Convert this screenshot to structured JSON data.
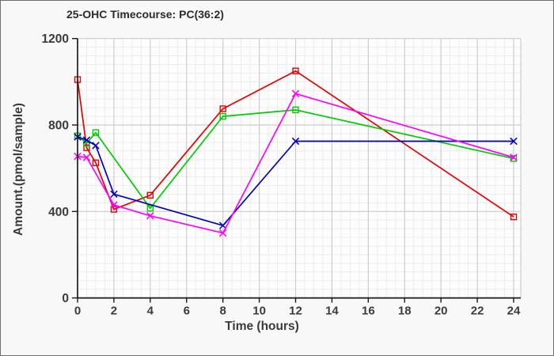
{
  "window": {
    "background": "#f8f8f8",
    "plot_background": "#fdfdfd",
    "frame_border": "#6e6e6e"
  },
  "chart_data": {
    "type": "line",
    "title": "25-OHC Timecourse: PC(36:2)",
    "xlabel": "Time (hours)",
    "ylabel": "Amount.(pmol/sample)",
    "xlim": [
      0,
      24
    ],
    "ylim": [
      0,
      1200
    ],
    "x_ticks": [
      0,
      2,
      4,
      6,
      8,
      10,
      12,
      14,
      16,
      18,
      20,
      22,
      24
    ],
    "y_ticks": [
      0,
      400,
      800,
      1200
    ],
    "grid": {
      "shown": true,
      "major_color": "#cccccc",
      "minor_color": "#ececec",
      "x_minor_step": 0.5,
      "y_minor_step": 40
    },
    "legend": "none",
    "axis_color": "#1a1a1a",
    "series": [
      {
        "name": "red-squares",
        "color": "#e80000",
        "marker": "square",
        "points": [
          [
            0,
            1010
          ],
          [
            0.5,
            695
          ],
          [
            1,
            625
          ],
          [
            2,
            410
          ],
          [
            4,
            475
          ],
          [
            8,
            875
          ],
          [
            12,
            1050
          ],
          [
            24,
            375
          ]
        ]
      },
      {
        "name": "green-squares",
        "color": "#00cc00",
        "marker": "square",
        "points": [
          [
            0,
            750
          ],
          [
            0.5,
            715
          ],
          [
            1,
            765
          ],
          [
            4,
            415
          ],
          [
            8,
            840
          ],
          [
            12,
            870
          ],
          [
            24,
            645
          ]
        ]
      },
      {
        "name": "navy-x",
        "color": "#0000c0",
        "marker": "x",
        "points": [
          [
            0,
            745
          ],
          [
            0.5,
            730
          ],
          [
            1,
            705
          ],
          [
            2,
            480
          ],
          [
            8,
            335
          ],
          [
            12,
            725
          ],
          [
            24,
            725
          ]
        ]
      },
      {
        "name": "magenta-x",
        "color": "#ff00ff",
        "marker": "x",
        "points": [
          [
            0,
            655
          ],
          [
            0.5,
            650
          ],
          [
            2,
            430
          ],
          [
            4,
            380
          ],
          [
            8,
            300
          ],
          [
            12,
            945
          ],
          [
            24,
            650
          ]
        ]
      }
    ]
  }
}
